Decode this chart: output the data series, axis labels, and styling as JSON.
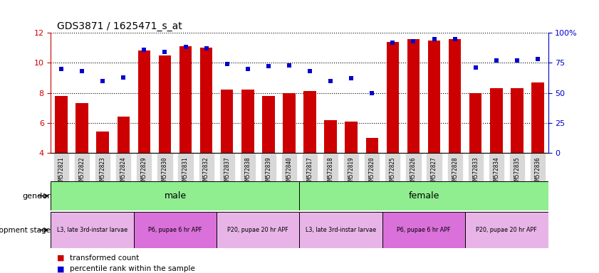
{
  "title": "GDS3871 / 1625471_s_at",
  "samples": [
    "GSM572821",
    "GSM572822",
    "GSM572823",
    "GSM572824",
    "GSM572829",
    "GSM572830",
    "GSM572831",
    "GSM572832",
    "GSM572837",
    "GSM572838",
    "GSM572839",
    "GSM572840",
    "GSM572817",
    "GSM572818",
    "GSM572819",
    "GSM572820",
    "GSM572825",
    "GSM572826",
    "GSM572827",
    "GSM572828",
    "GSM572833",
    "GSM572834",
    "GSM572835",
    "GSM572836"
  ],
  "bar_values": [
    7.8,
    7.3,
    5.4,
    6.4,
    10.8,
    10.5,
    11.1,
    11.0,
    8.2,
    8.2,
    7.8,
    8.0,
    8.1,
    6.2,
    6.1,
    5.0,
    11.4,
    11.6,
    11.5,
    11.6,
    8.0,
    8.3,
    8.3,
    8.7
  ],
  "percentile_values": [
    70,
    68,
    60,
    63,
    86,
    84,
    88,
    87,
    74,
    70,
    72,
    73,
    68,
    60,
    62,
    50,
    92,
    93,
    95,
    95,
    71,
    77,
    77,
    78
  ],
  "bar_color": "#cc0000",
  "dot_color": "#0000cc",
  "ylim_left": [
    4,
    12
  ],
  "ylim_right": [
    0,
    100
  ],
  "yticks_left": [
    4,
    6,
    8,
    10,
    12
  ],
  "yticks_right": [
    0,
    25,
    50,
    75,
    100
  ],
  "gender_data": [
    {
      "label": "male",
      "start": 0,
      "end": 12,
      "color": "#90ee90"
    },
    {
      "label": "female",
      "start": 12,
      "end": 24,
      "color": "#90ee90"
    }
  ],
  "dev_stage_data": [
    {
      "label": "L3, late 3rd-instar larvae",
      "start": 0,
      "end": 4,
      "color": "#e8b4e8"
    },
    {
      "label": "P6, pupae 6 hr APF",
      "start": 4,
      "end": 8,
      "color": "#da70da"
    },
    {
      "label": "P20, pupae 20 hr APF",
      "start": 8,
      "end": 12,
      "color": "#e8b4e8"
    },
    {
      "label": "L3, late 3rd-instar larvae",
      "start": 12,
      "end": 16,
      "color": "#e8b4e8"
    },
    {
      "label": "P6, pupae 6 hr APF",
      "start": 16,
      "end": 20,
      "color": "#da70da"
    },
    {
      "label": "P20, pupae 20 hr APF",
      "start": 20,
      "end": 24,
      "color": "#e8b4e8"
    }
  ],
  "legend_bar_label": "transformed count",
  "legend_dot_label": "percentile rank within the sample",
  "gender_row_label": "gender",
  "dev_stage_row_label": "development stage",
  "bg_color": "#ffffff",
  "tick_label_bg": "#d8d8d8"
}
